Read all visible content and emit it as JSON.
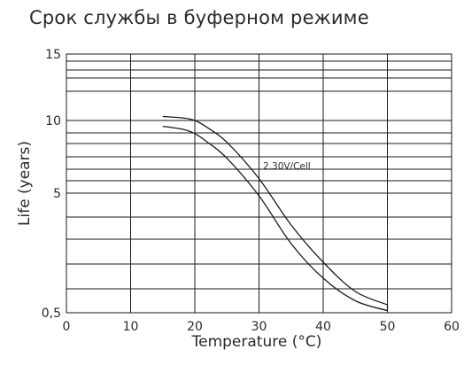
{
  "chart_data": {
    "type": "line",
    "title": "Срок службы в буферном режиме",
    "xlabel": "Temperature (°C)",
    "ylabel": "Life (years)",
    "xlim": [
      0,
      60
    ],
    "x_ticks": [
      0,
      10,
      20,
      30,
      40,
      50,
      60
    ],
    "x_tick_labels": [
      "0",
      "10",
      "20",
      "30",
      "40",
      "50",
      "60"
    ],
    "y_tick_labels": [
      {
        "label": "15",
        "value": 15
      },
      {
        "label": "10",
        "value": 10
      },
      {
        "label": "5",
        "value": 5
      },
      {
        "label": "0,5",
        "value": 0.5
      }
    ],
    "grid": true,
    "annotation": "2.30V/Cell",
    "series": [
      {
        "x": [
          15,
          18,
          20,
          22,
          25,
          30,
          35,
          40,
          45,
          50
        ],
        "y": [
          10.3,
          10.2,
          10.0,
          9.5,
          8.5,
          6.0,
          3.8,
          2.4,
          1.3,
          0.8
        ]
      },
      {
        "x": [
          15,
          18,
          20,
          22,
          25,
          30,
          35,
          40,
          45,
          50
        ],
        "y": [
          9.6,
          9.4,
          9.1,
          8.5,
          7.4,
          4.9,
          3.1,
          1.8,
          0.95,
          0.58
        ]
      }
    ]
  }
}
